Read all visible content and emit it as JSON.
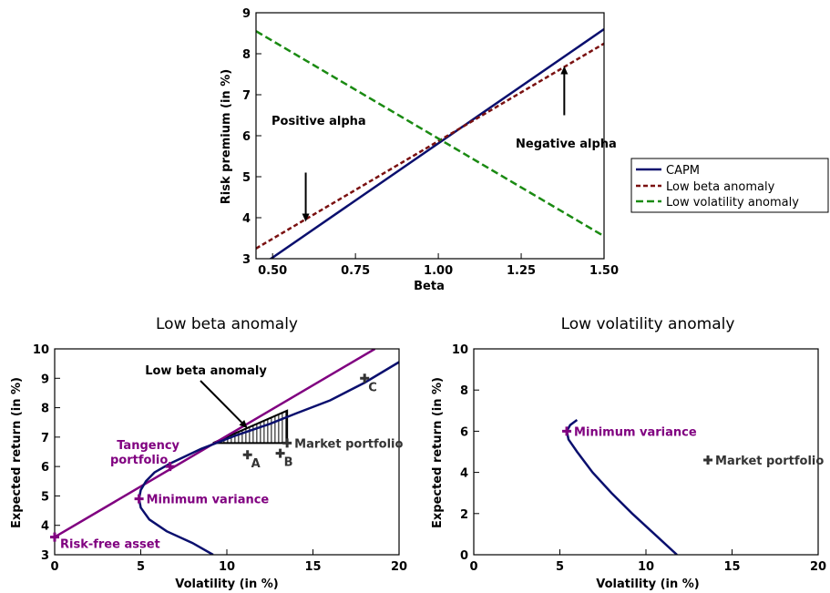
{
  "colors": {
    "capm": "#0a0f6e",
    "low_beta": "#7a1010",
    "low_vol": "#1a8a12",
    "purple": "#800080",
    "grey": "#333333",
    "black": "#000000"
  },
  "chart_data": [
    {
      "type": "line",
      "title": "",
      "xlabel": "Beta",
      "ylabel": "Risk premium (in %)",
      "xlim": [
        0.45,
        1.5
      ],
      "ylim": [
        3,
        9
      ],
      "xticks": [
        "0.50",
        "0.75",
        "1.00",
        "1.25",
        "1.50"
      ],
      "yticks": [
        "3",
        "4",
        "5",
        "6",
        "7",
        "8",
        "9"
      ],
      "series": [
        {
          "name": "CAPM",
          "x": [
            0.45,
            1.5
          ],
          "y": [
            2.75,
            8.6
          ]
        },
        {
          "name": "Low beta anomaly",
          "x": [
            0.45,
            1.5
          ],
          "y": [
            3.25,
            8.25
          ]
        },
        {
          "name": "Low volatility anomaly",
          "x": [
            0.45,
            1.5
          ],
          "y": [
            8.55,
            3.55
          ]
        }
      ],
      "annotations": [
        {
          "text": "Positive alpha",
          "arrow_x": 0.6,
          "arrow_y_from": 5.1,
          "arrow_y_to": 3.9
        },
        {
          "text": "Negative alpha",
          "arrow_x": 1.38,
          "arrow_y_from": 6.5,
          "arrow_y_to": 7.7
        }
      ],
      "legend": "outside-right"
    },
    {
      "type": "line",
      "title": "Low beta anomaly",
      "xlabel": "Volatility (in %)",
      "ylabel": "Expected return (in %)",
      "xlim": [
        0,
        20
      ],
      "ylim": [
        3,
        10
      ],
      "xticks": [
        "0",
        "5",
        "10",
        "15",
        "20"
      ],
      "yticks": [
        "3",
        "4",
        "5",
        "6",
        "7",
        "8",
        "9",
        "10"
      ],
      "frontier": {
        "x": [
          9.2,
          8.0,
          6.5,
          5.5,
          5.0,
          4.9,
          5.0,
          5.3,
          5.8,
          6.7,
          8.5,
          10.5,
          12.5,
          14.0,
          16.0,
          18.0,
          20.0
        ],
        "y": [
          3.0,
          3.4,
          3.8,
          4.2,
          4.6,
          4.9,
          5.2,
          5.5,
          5.8,
          6.1,
          6.6,
          7.05,
          7.45,
          7.8,
          8.25,
          8.85,
          9.55
        ]
      },
      "cml": {
        "x": [
          0,
          18.6
        ],
        "y": [
          3.6,
          10.0
        ]
      },
      "points": [
        {
          "label": "Risk-free asset",
          "x": 0,
          "y": 3.6,
          "color": "purple"
        },
        {
          "label": "Minimum variance",
          "x": 4.9,
          "y": 4.9,
          "color": "purple"
        },
        {
          "label": "Tangency portfolio",
          "x": 6.7,
          "y": 6.0,
          "color": "purple"
        },
        {
          "label": "Market portfolio",
          "x": 13.5,
          "y": 6.8,
          "color": "grey"
        },
        {
          "label": "A",
          "x": 11.2,
          "y": 6.4,
          "color": "grey"
        },
        {
          "label": "B",
          "x": 13.1,
          "y": 6.45,
          "color": "grey"
        },
        {
          "label": "C",
          "x": 18.0,
          "y": 9.0,
          "color": "grey"
        }
      ],
      "hatched_region": {
        "x": [
          9.2,
          13.5,
          13.5
        ],
        "y": [
          6.8,
          6.8,
          7.9
        ]
      },
      "annotation": {
        "text": "Low beta anomaly",
        "arrow_to_x": 11.2,
        "arrow_to_y": 7.3
      }
    },
    {
      "type": "line",
      "title": "Low volatility anomaly",
      "xlabel": "Volatility (in %)",
      "ylabel": "Expected return (in %)",
      "xlim": [
        0,
        20
      ],
      "ylim": [
        0,
        10
      ],
      "xticks": [
        "0",
        "5",
        "10",
        "15",
        "20"
      ],
      "yticks": [
        "0",
        "2",
        "4",
        "6",
        "8",
        "10"
      ],
      "frontier": {
        "x": [
          11.8,
          10.5,
          9.2,
          8.0,
          6.9,
          6.0,
          5.5,
          5.4,
          5.6,
          6.0
        ],
        "y": [
          0.0,
          1.0,
          2.0,
          3.0,
          4.0,
          5.0,
          5.6,
          6.0,
          6.3,
          6.55
        ]
      },
      "points": [
        {
          "label": "Minimum variance",
          "x": 5.4,
          "y": 6.0,
          "color": "purple"
        },
        {
          "label": "Market portfolio",
          "x": 13.6,
          "y": 4.6,
          "color": "grey"
        }
      ]
    }
  ]
}
